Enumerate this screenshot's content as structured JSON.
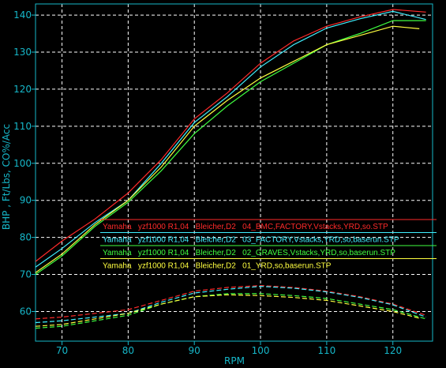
{
  "chart_data": {
    "type": "line",
    "xlabel": "RPM",
    "ylabel": "BHP , Ft/Lbs, CO%/Acc",
    "xlim": [
      66,
      126
    ],
    "ylim": [
      52,
      143
    ],
    "x_ticks": [
      70,
      80,
      90,
      100,
      110,
      120
    ],
    "y_ticks": [
      60,
      70,
      80,
      90,
      100,
      110,
      120,
      130,
      140
    ],
    "grid": true,
    "legend_placement": "lower-middle",
    "colors": {
      "background": "#000000",
      "grid": "#ffffff",
      "axis_text": "#16b7c9"
    },
    "series": [
      {
        "name": "Yamaha   yzf1000 R1,04   Bleicher,D2   04_BMC,FACTORY,Vstacks,YRD,so.STP",
        "color": "#ff2a2a",
        "hp": {
          "x": [
            66,
            70,
            75,
            80,
            85,
            90,
            95,
            100,
            105,
            110,
            115,
            120,
            125
          ],
          "y": [
            73.5,
            79,
            85,
            92,
            101,
            112,
            119,
            127,
            133,
            137,
            139.5,
            141.5,
            140.8
          ]
        },
        "torque": {
          "x": [
            66,
            70,
            75,
            80,
            85,
            90,
            95,
            100,
            105,
            110,
            115,
            120,
            125
          ],
          "y": [
            58,
            58.5,
            59.5,
            60.5,
            63,
            65.5,
            66.5,
            67,
            66.5,
            65.5,
            64,
            62,
            59
          ]
        }
      },
      {
        "name": "Yamaha   yzf1000 R1,04   Bleicher,D2   03_FACTORY,Vstacks,YRD,so,baserun.STP",
        "color": "#40f0ff",
        "hp": {
          "x": [
            66,
            70,
            75,
            80,
            85,
            90,
            95,
            100,
            105,
            110,
            115,
            120,
            125
          ],
          "y": [
            72,
            77,
            84,
            90,
            100,
            111,
            118,
            126,
            132,
            136.5,
            139,
            141,
            138.8
          ]
        },
        "torque": {
          "x": [
            66,
            70,
            75,
            80,
            85,
            90,
            95,
            100,
            105,
            110,
            115,
            120,
            125
          ],
          "y": [
            57,
            57.5,
            58.5,
            59.5,
            62.5,
            65,
            66,
            66.8,
            66.3,
            65.3,
            63.8,
            61.8,
            58.5
          ]
        }
      },
      {
        "name": "Yamaha   yzf1000 R1,04   Bleicher,D2   02_GRAVES,Vstacks,YRD,so,baserun.STP",
        "color": "#40ff40",
        "hp": {
          "x": [
            66,
            70,
            75,
            80,
            85,
            90,
            95,
            100,
            105,
            110,
            115,
            120,
            125
          ],
          "y": [
            70,
            75,
            83,
            89.5,
            98,
            108,
            115.5,
            122,
            127,
            132,
            135,
            138.5,
            138.5
          ]
        },
        "torque": {
          "x": [
            66,
            70,
            75,
            80,
            85,
            90,
            95,
            100,
            105,
            110,
            115,
            120,
            125
          ],
          "y": [
            55.5,
            56,
            57.5,
            59,
            62,
            64,
            64.8,
            64.8,
            64.3,
            63.5,
            62,
            60.5,
            58
          ]
        }
      },
      {
        "name": "Yamaha   yzf1000 R1,04   Bleicher,D2   01_YRD,so,baserun.STP",
        "color": "#ffff40",
        "hp": {
          "x": [
            66,
            70,
            75,
            80,
            85,
            90,
            95,
            100,
            105,
            110,
            115,
            120,
            124
          ],
          "y": [
            70.5,
            75.5,
            83.5,
            90,
            99,
            110,
            117,
            123,
            127.5,
            132,
            134.5,
            137,
            136.3
          ]
        },
        "torque": {
          "x": [
            66,
            70,
            75,
            80,
            85,
            90,
            95,
            100,
            105,
            110,
            115,
            120,
            124
          ],
          "y": [
            56,
            56.5,
            58,
            59.5,
            62,
            64,
            64.5,
            64.3,
            63.8,
            63,
            61.5,
            60,
            58.2
          ]
        }
      }
    ]
  }
}
